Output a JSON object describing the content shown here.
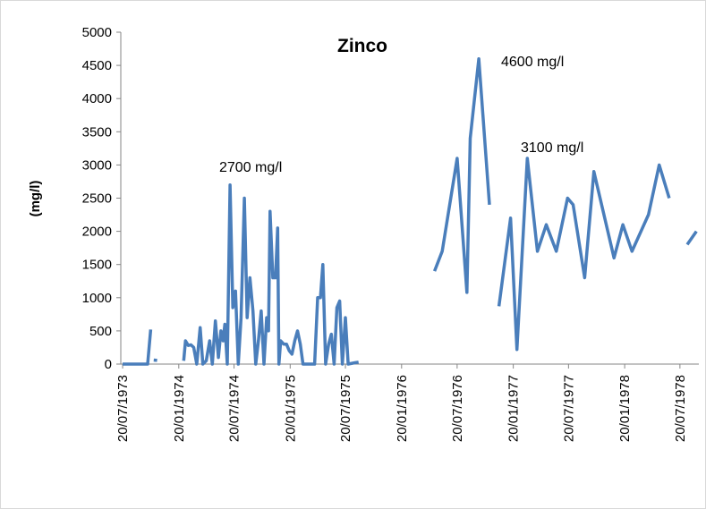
{
  "chart_data": {
    "type": "line",
    "title": "Zinco",
    "y_label": "(mg/l)",
    "annotations": [
      "2700 mg/l",
      "4600 mg/l",
      "3100 mg/l"
    ],
    "color": "#4a7ebb",
    "x": [
      "1973-07-20",
      "1973-09-01",
      "1973-10-10",
      "1973-10-20",
      null,
      "1973-10-30",
      "1973-11-10",
      null,
      "1974-02-05",
      "1974-02-11",
      "1974-02-20",
      "1974-03-01",
      "1974-03-10",
      "1974-03-20",
      "1974-03-31",
      "1974-04-09",
      "1974-04-20",
      "1974-05-01",
      "1974-05-10",
      "1974-05-20",
      "1974-05-30",
      "1974-06-07",
      "1974-06-14",
      "1974-06-20",
      "1974-06-28",
      "1974-07-07",
      "1974-07-16",
      "1974-07-25",
      "1974-08-03",
      "1974-08-12",
      "1974-08-23",
      "1974-09-01",
      "1974-09-10",
      "1974-09-20",
      "1974-09-29",
      "1974-10-08",
      "1974-10-17",
      "1974-10-26",
      "1974-11-04",
      "1974-11-10",
      "1974-11-15",
      "1974-11-24",
      "1974-12-03",
      "1974-12-10",
      "1974-12-14",
      "1974-12-20",
      "1974-12-30",
      "1975-01-08",
      "1975-01-17",
      "1975-01-26",
      "1975-02-04",
      "1975-02-13",
      "1975-02-22",
      "1975-03-03",
      "1975-04-10",
      "1975-04-20",
      "1975-04-29",
      "1975-05-07",
      "1975-05-16",
      "1975-05-26",
      "1975-06-04",
      "1975-06-13",
      "1975-06-22",
      "1975-07-01",
      "1975-07-10",
      "1975-07-20",
      "1975-07-29",
      "1975-08-20",
      "1975-09-01",
      null,
      "1976-05-07",
      "1976-06-01",
      "1976-07-20",
      "1976-08-21",
      "1976-09-01",
      "1976-09-29",
      "1976-11-03",
      null,
      "1976-12-04",
      "1977-01-11",
      "1977-02-01",
      "1977-03-07",
      "1977-04-09",
      "1977-05-08",
      "1977-06-10",
      "1977-07-17",
      "1977-08-04",
      "1977-09-11",
      "1977-10-11",
      "1977-12-16",
      "1978-01-14",
      "1978-02-13",
      "1978-04-08",
      "1978-05-13",
      "1978-06-15",
      null,
      "1978-08-13",
      "1978-09-12"
    ],
    "values": [
      0,
      0,
      0,
      520,
      null,
      60,
      55,
      null,
      50,
      350,
      280,
      290,
      250,
      0,
      550,
      0,
      50,
      350,
      0,
      650,
      100,
      500,
      350,
      600,
      0,
      2700,
      850,
      1100,
      0,
      700,
      2500,
      700,
      1300,
      800,
      0,
      350,
      800,
      0,
      700,
      500,
      2300,
      1300,
      1300,
      2050,
      0,
      350,
      300,
      300,
      200,
      150,
      350,
      500,
      300,
      0,
      0,
      1000,
      1000,
      1500,
      0,
      300,
      450,
      0,
      850,
      950,
      0,
      700,
      0,
      20,
      30,
      null,
      1400,
      1700,
      3100,
      1080,
      3400,
      4600,
      2400,
      null,
      870,
      2200,
      220,
      3100,
      1700,
      2100,
      1700,
      2500,
      2400,
      1300,
      2900,
      1600,
      2100,
      1700,
      2250,
      3000,
      2500,
      null,
      1800,
      2000
    ],
    "xlim": [
      "1973-07-14",
      "1978-09-20"
    ],
    "xticks": [
      {
        "value": "1973-07-20",
        "label": "20/07/1973"
      },
      {
        "value": "1974-01-20",
        "label": "20/01/1974"
      },
      {
        "value": "1974-07-20",
        "label": "20/07/1974"
      },
      {
        "value": "1975-01-20",
        "label": "20/01/1975"
      },
      {
        "value": "1975-07-20",
        "label": "20/07/1975"
      },
      {
        "value": "1976-01-20",
        "label": "20/01/1976"
      },
      {
        "value": "1976-07-20",
        "label": "20/07/1976"
      },
      {
        "value": "1977-01-20",
        "label": "20/01/1977"
      },
      {
        "value": "1977-07-20",
        "label": "20/07/1977"
      },
      {
        "value": "1978-01-20",
        "label": "20/01/1978"
      },
      {
        "value": "1978-07-20",
        "label": "20/07/1978"
      }
    ],
    "ylim": [
      0,
      5000
    ],
    "yticks": [
      0,
      500,
      1000,
      1500,
      2000,
      2500,
      3000,
      3500,
      4000,
      4500,
      5000
    ]
  }
}
